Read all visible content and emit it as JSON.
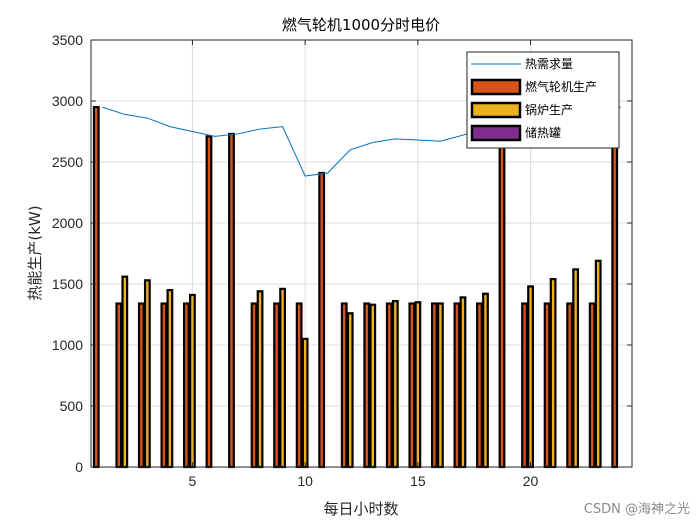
{
  "chart_data": {
    "type": "bar",
    "title": "燃气轮机1000分时电价",
    "xlabel": "每日小时数",
    "ylabel": "热能生产(kW)",
    "ylim": [
      0,
      3500
    ],
    "xlim": [
      0.5,
      24.5
    ],
    "xticks": [
      5,
      10,
      15,
      20
    ],
    "yticks": [
      0,
      500,
      1000,
      1500,
      2000,
      2500,
      3000,
      3500
    ],
    "grid": true,
    "legend_position": "top-right",
    "hours": [
      1,
      2,
      3,
      4,
      5,
      6,
      7,
      8,
      9,
      10,
      11,
      12,
      13,
      14,
      15,
      16,
      17,
      18,
      19,
      20,
      21,
      22,
      23,
      24
    ],
    "line_series": {
      "name": "热需求量",
      "color": "#0072BD",
      "values": [
        2950,
        2890,
        2860,
        2790,
        2750,
        2710,
        2730,
        2770,
        2790,
        2385,
        2410,
        2600,
        2660,
        2690,
        2680,
        2670,
        2720,
        2780,
        2830,
        2860,
        2870,
        2900,
        2920,
        2950
      ]
    },
    "series": [
      {
        "name": "燃气轮机生产",
        "color": "#D95319",
        "values": [
          2950,
          1340,
          1340,
          1340,
          1340,
          2710,
          2730,
          1340,
          1340,
          1340,
          2410,
          1340,
          1340,
          1340,
          1340,
          1340,
          1340,
          1340,
          2830,
          1340,
          1340,
          1340,
          1340,
          2950
        ]
      },
      {
        "name": "锅炉生产",
        "color": "#EDB120",
        "values": [
          0,
          1560,
          1530,
          1450,
          1410,
          0,
          0,
          1440,
          1460,
          1050,
          0,
          1260,
          1330,
          1360,
          1350,
          1340,
          1390,
          1420,
          0,
          1480,
          1540,
          1620,
          1690,
          0
        ]
      },
      {
        "name": "储热罐",
        "color": "#7E2F8E",
        "values": [
          0,
          0,
          0,
          0,
          0,
          0,
          0,
          0,
          0,
          0,
          0,
          0,
          0,
          0,
          0,
          0,
          0,
          0,
          0,
          0,
          0,
          0,
          0,
          0
        ]
      }
    ]
  },
  "watermark": "CSDN @海神之光"
}
